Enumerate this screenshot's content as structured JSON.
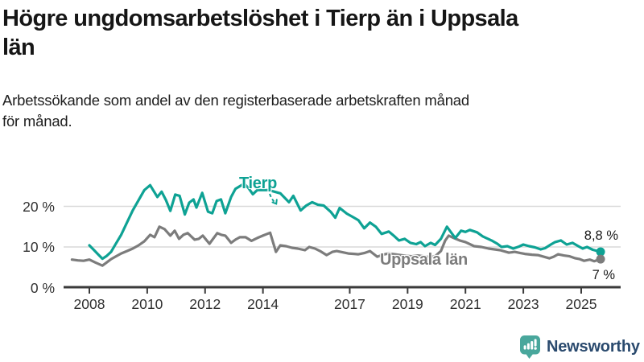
{
  "header": {
    "title": "Högre ungdomsarbetslöshet i Tierp än i Uppsala län",
    "title_lines": [
      "Högre ungdomsarbetslöshet i Tierp än i Uppsala",
      "län"
    ],
    "subtitle": "Arbetssökande som andel av den registerbaserade arbetskraften månad för månad.",
    "subtitle_lines": [
      "Arbetssökande som andel av den registerbaserade arbetskraften månad",
      "för månad."
    ]
  },
  "branding": {
    "name": "Newsworthy",
    "icon": "bar-chart-speech-bubble-icon",
    "icon_color": "#49a79c",
    "text_color": "#2a4a6e"
  },
  "colors": {
    "grid": "#d9d9d9",
    "axis": "#3a3a3a",
    "tick_text": "#303030",
    "title_text": "#161616"
  },
  "chart_data": {
    "type": "line",
    "title": "Högre ungdomsarbetslöshet i Tierp än i Uppsala län",
    "subtitle": "Arbetssökande som andel av den registerbaserade arbetskraften månad för månad.",
    "x_axis": {
      "unit": "year",
      "tick_years": [
        2008,
        2010,
        2012,
        2014,
        2017,
        2019,
        2021,
        2023,
        2025
      ],
      "range": [
        2007.3,
        2025.8
      ]
    },
    "y_axis": {
      "unit": "%",
      "ticks": [
        {
          "value": 0,
          "label": "0 %"
        },
        {
          "value": 10,
          "label": "10 %"
        },
        {
          "value": 20,
          "label": "20 %"
        }
      ],
      "range": [
        0,
        27
      ]
    },
    "grid": "horizontal",
    "legend": "inline-labels",
    "series": [
      {
        "name": "Tierp",
        "color": "#0ea294",
        "end_label": "8,8 %",
        "end_value": 8.8,
        "points": [
          [
            2008.0,
            10.4
          ],
          [
            2008.15,
            9.3
          ],
          [
            2008.3,
            8.2
          ],
          [
            2008.45,
            7.1
          ],
          [
            2008.6,
            7.8
          ],
          [
            2008.75,
            8.8
          ],
          [
            2008.9,
            10.6
          ],
          [
            2009.1,
            13.0
          ],
          [
            2009.3,
            16.0
          ],
          [
            2009.5,
            19.0
          ],
          [
            2009.7,
            21.5
          ],
          [
            2009.9,
            24.0
          ],
          [
            2010.1,
            25.2
          ],
          [
            2010.35,
            22.3
          ],
          [
            2010.5,
            23.6
          ],
          [
            2010.65,
            21.5
          ],
          [
            2010.8,
            18.9
          ],
          [
            2010.97,
            22.9
          ],
          [
            2011.12,
            22.6
          ],
          [
            2011.3,
            18.0
          ],
          [
            2011.45,
            20.9
          ],
          [
            2011.6,
            21.7
          ],
          [
            2011.7,
            19.7
          ],
          [
            2011.9,
            23.3
          ],
          [
            2012.1,
            18.7
          ],
          [
            2012.25,
            18.3
          ],
          [
            2012.4,
            21.3
          ],
          [
            2012.55,
            21.7
          ],
          [
            2012.7,
            18.3
          ],
          [
            2012.9,
            22.3
          ],
          [
            2013.05,
            24.3
          ],
          [
            2013.35,
            25.6
          ],
          [
            2013.5,
            24.5
          ],
          [
            2013.65,
            23.0
          ],
          [
            2013.8,
            24.0
          ],
          [
            2014.2,
            24.0
          ],
          [
            2014.6,
            23.2
          ],
          [
            2014.9,
            21.0
          ],
          [
            2015.05,
            22.6
          ],
          [
            2015.3,
            19.0
          ],
          [
            2015.5,
            20.2
          ],
          [
            2015.7,
            21.0
          ],
          [
            2015.9,
            20.4
          ],
          [
            2016.1,
            20.2
          ],
          [
            2016.35,
            18.6
          ],
          [
            2016.5,
            17.2
          ],
          [
            2016.65,
            19.6
          ],
          [
            2016.9,
            18.2
          ],
          [
            2017.1,
            17.4
          ],
          [
            2017.3,
            16.6
          ],
          [
            2017.5,
            14.6
          ],
          [
            2017.7,
            16.0
          ],
          [
            2017.9,
            15.0
          ],
          [
            2018.1,
            13.2
          ],
          [
            2018.35,
            13.8
          ],
          [
            2018.55,
            12.6
          ],
          [
            2018.7,
            11.6
          ],
          [
            2018.9,
            12.0
          ],
          [
            2019.1,
            11.0
          ],
          [
            2019.3,
            10.7
          ],
          [
            2019.45,
            11.2
          ],
          [
            2019.6,
            10.2
          ],
          [
            2019.8,
            11.0
          ],
          [
            2019.95,
            10.5
          ],
          [
            2020.15,
            12.0
          ],
          [
            2020.36,
            15.0
          ],
          [
            2020.5,
            13.6
          ],
          [
            2020.65,
            12.2
          ],
          [
            2020.85,
            14.0
          ],
          [
            2021.0,
            13.7
          ],
          [
            2021.15,
            14.2
          ],
          [
            2021.4,
            13.6
          ],
          [
            2021.6,
            12.6
          ],
          [
            2021.9,
            11.6
          ],
          [
            2022.1,
            10.8
          ],
          [
            2022.25,
            10.0
          ],
          [
            2022.45,
            10.2
          ],
          [
            2022.65,
            9.6
          ],
          [
            2022.85,
            10.1
          ],
          [
            2023.0,
            10.6
          ],
          [
            2023.2,
            10.2
          ],
          [
            2023.4,
            9.9
          ],
          [
            2023.6,
            9.4
          ],
          [
            2023.75,
            9.7
          ],
          [
            2023.95,
            10.6
          ],
          [
            2024.1,
            11.2
          ],
          [
            2024.3,
            11.6
          ],
          [
            2024.5,
            10.6
          ],
          [
            2024.7,
            11.0
          ],
          [
            2024.9,
            10.2
          ],
          [
            2025.05,
            9.6
          ],
          [
            2025.2,
            10.0
          ],
          [
            2025.4,
            9.3
          ],
          [
            2025.67,
            8.8
          ]
        ]
      },
      {
        "name": "Uppsala län",
        "color": "#7c7c7c",
        "end_label": "7 %",
        "end_value": 7.0,
        "points": [
          [
            2007.4,
            6.9
          ],
          [
            2007.6,
            6.7
          ],
          [
            2007.8,
            6.6
          ],
          [
            2008.0,
            6.9
          ],
          [
            2008.2,
            6.2
          ],
          [
            2008.45,
            5.4
          ],
          [
            2008.6,
            6.2
          ],
          [
            2008.75,
            7.0
          ],
          [
            2008.9,
            7.6
          ],
          [
            2009.1,
            8.4
          ],
          [
            2009.3,
            9.0
          ],
          [
            2009.5,
            9.6
          ],
          [
            2009.7,
            10.4
          ],
          [
            2009.9,
            11.4
          ],
          [
            2010.1,
            13.0
          ],
          [
            2010.25,
            12.4
          ],
          [
            2010.42,
            15.0
          ],
          [
            2010.6,
            14.4
          ],
          [
            2010.8,
            12.8
          ],
          [
            2010.95,
            14.0
          ],
          [
            2011.1,
            12.0
          ],
          [
            2011.25,
            13.0
          ],
          [
            2011.4,
            13.4
          ],
          [
            2011.64,
            11.8
          ],
          [
            2011.78,
            12.0
          ],
          [
            2011.92,
            12.8
          ],
          [
            2012.15,
            10.8
          ],
          [
            2012.42,
            13.4
          ],
          [
            2012.56,
            13.0
          ],
          [
            2012.7,
            12.8
          ],
          [
            2012.9,
            11.0
          ],
          [
            2013.05,
            11.8
          ],
          [
            2013.2,
            12.4
          ],
          [
            2013.4,
            12.4
          ],
          [
            2013.6,
            11.5
          ],
          [
            2013.8,
            12.2
          ],
          [
            2014.0,
            12.8
          ],
          [
            2014.25,
            13.5
          ],
          [
            2014.45,
            8.8
          ],
          [
            2014.6,
            10.4
          ],
          [
            2014.8,
            10.2
          ],
          [
            2015.0,
            9.8
          ],
          [
            2015.2,
            9.6
          ],
          [
            2015.45,
            9.2
          ],
          [
            2015.6,
            10.0
          ],
          [
            2015.8,
            9.6
          ],
          [
            2016.0,
            8.9
          ],
          [
            2016.2,
            8.0
          ],
          [
            2016.4,
            8.8
          ],
          [
            2016.55,
            9.0
          ],
          [
            2016.75,
            8.7
          ],
          [
            2016.95,
            8.4
          ],
          [
            2017.15,
            8.3
          ],
          [
            2017.3,
            8.2
          ],
          [
            2017.5,
            8.5
          ],
          [
            2017.7,
            9.0
          ],
          [
            2017.95,
            7.6
          ],
          [
            2018.15,
            8.1
          ],
          [
            2018.35,
            8.4
          ],
          [
            2018.55,
            8.2
          ],
          [
            2018.75,
            8.0
          ],
          [
            2018.95,
            7.8
          ],
          [
            2019.15,
            7.7
          ],
          [
            2019.35,
            7.9
          ],
          [
            2019.55,
            7.7
          ],
          [
            2019.75,
            7.5
          ],
          [
            2019.95,
            7.7
          ],
          [
            2020.15,
            9.0
          ],
          [
            2020.3,
            11.6
          ],
          [
            2020.42,
            12.8
          ],
          [
            2020.6,
            12.2
          ],
          [
            2020.8,
            11.6
          ],
          [
            2021.0,
            11.2
          ],
          [
            2021.3,
            10.2
          ],
          [
            2021.55,
            10.0
          ],
          [
            2021.8,
            9.6
          ],
          [
            2022.0,
            9.4
          ],
          [
            2022.2,
            9.2
          ],
          [
            2022.5,
            8.6
          ],
          [
            2022.7,
            8.8
          ],
          [
            2022.9,
            8.5
          ],
          [
            2023.05,
            8.3
          ],
          [
            2023.3,
            8.1
          ],
          [
            2023.5,
            8.0
          ],
          [
            2023.7,
            7.6
          ],
          [
            2023.9,
            7.2
          ],
          [
            2024.05,
            7.6
          ],
          [
            2024.2,
            8.2
          ],
          [
            2024.4,
            7.9
          ],
          [
            2024.6,
            7.7
          ],
          [
            2024.8,
            7.2
          ],
          [
            2024.95,
            7.0
          ],
          [
            2025.1,
            6.6
          ],
          [
            2025.3,
            6.9
          ],
          [
            2025.45,
            6.5
          ],
          [
            2025.67,
            7.0
          ]
        ]
      }
    ]
  }
}
